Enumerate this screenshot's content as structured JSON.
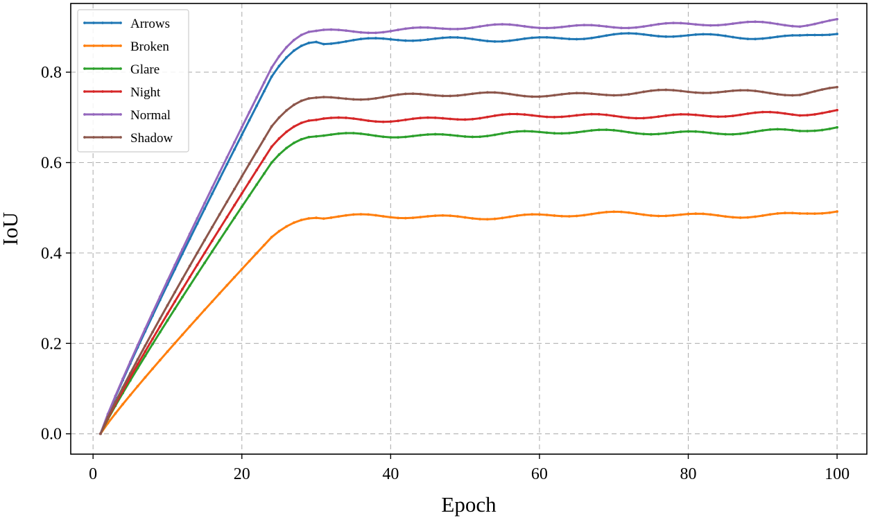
{
  "chart_data": {
    "type": "line",
    "title": "",
    "xlabel": "Epoch",
    "ylabel": "IoU",
    "xlim": [
      -3,
      104
    ],
    "ylim": [
      -0.045,
      0.952
    ],
    "xticks": [
      0,
      20,
      40,
      60,
      80,
      100
    ],
    "yticks": [
      0.0,
      0.2,
      0.4,
      0.6,
      0.8
    ],
    "xtick_labels": [
      "0",
      "20",
      "40",
      "60",
      "80",
      "100"
    ],
    "ytick_labels": [
      "0.0",
      "0.2",
      "0.4",
      "0.6",
      "0.8"
    ],
    "grid": true,
    "legend_position": "top-left",
    "x_range": [
      1,
      100
    ],
    "series": [
      {
        "name": "Arrows",
        "color": "#1f77b4",
        "final": 0.888,
        "plateau": 0.88,
        "ramp_end": 30,
        "knee": 24,
        "knee_val": 0.79
      },
      {
        "name": "Broken",
        "color": "#ff7f0e",
        "final": 0.492,
        "plateau": 0.485,
        "ramp_end": 30,
        "knee": 24,
        "knee_val": 0.435
      },
      {
        "name": "Glare",
        "color": "#2ca02c",
        "final": 0.676,
        "plateau": 0.668,
        "ramp_end": 30,
        "knee": 24,
        "knee_val": 0.6
      },
      {
        "name": "Night",
        "color": "#d62728",
        "final": 0.714,
        "plateau": 0.705,
        "ramp_end": 30,
        "knee": 24,
        "knee_val": 0.635
      },
      {
        "name": "Normal",
        "color": "#9467bd",
        "final": 0.916,
        "plateau": 0.905,
        "ramp_end": 30,
        "knee": 24,
        "knee_val": 0.81
      },
      {
        "name": "Shadow",
        "color": "#8c564b",
        "final": 0.766,
        "plateau": 0.755,
        "ramp_end": 30,
        "knee": 24,
        "knee_val": 0.68
      }
    ]
  }
}
